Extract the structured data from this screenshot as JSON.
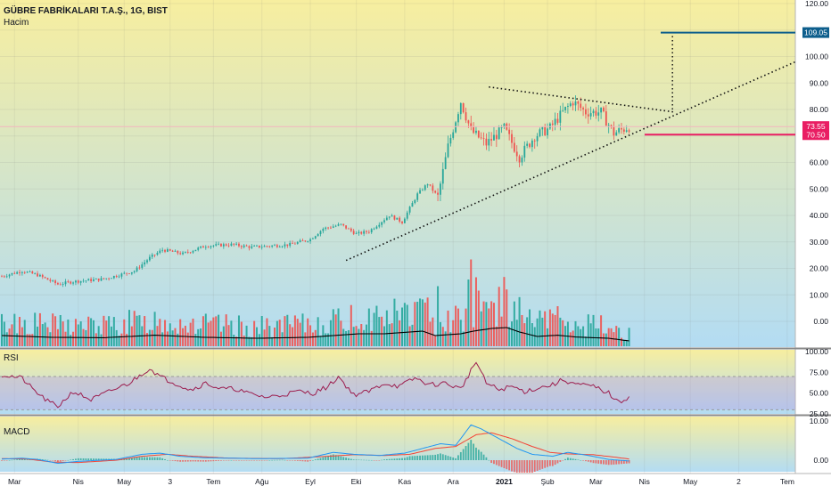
{
  "header": {
    "symbol_title": "GÜBRE FABRİKALARI T.A.Ş., 1G, BIST",
    "volume_label": "Hacim"
  },
  "colors": {
    "up": "#26a69a",
    "down": "#ef5350",
    "volume_ma": "#000000",
    "target_line": "#0d5e8c",
    "support_line": "#e91e63",
    "last_price_line": "#f4b6be",
    "rsi_line": "#9c1d4e",
    "macd_line": "#2196f3",
    "signal_line": "#f44336",
    "grad_top": "#f7ee9f",
    "grad_bottom": "#b3dcf3"
  },
  "chart_data": [
    {
      "type": "candlestick",
      "panel": "price",
      "title": "GÜBRE FABRİKALARI T.A.Ş., 1G, BIST",
      "x_ticks": [
        "Mar",
        "Nis",
        "May",
        "3",
        "Tem",
        "Ağu",
        "Eyl",
        "Eki",
        "Kas",
        "Ara",
        "2021",
        "Şub",
        "Mar",
        "Nis",
        "May",
        "2",
        "Tem"
      ],
      "y_ticks": [
        "120.00",
        "110.00",
        "100.00",
        "90.00",
        "80.00",
        "70.00",
        "60.00",
        "50.00",
        "40.00",
        "30.00",
        "20.00",
        "10.00",
        "0.00"
      ],
      "ylim": [
        -3,
        120
      ],
      "close_path": [
        [
          0,
          17
        ],
        [
          8,
          19
        ],
        [
          14,
          17.5
        ],
        [
          22,
          14
        ],
        [
          28,
          15
        ],
        [
          40,
          16
        ],
        [
          52,
          19
        ],
        [
          58,
          24
        ],
        [
          63,
          27
        ],
        [
          71,
          25.5
        ],
        [
          80,
          28.5
        ],
        [
          90,
          29
        ],
        [
          98,
          28
        ],
        [
          113,
          29
        ],
        [
          121,
          31
        ],
        [
          126,
          35
        ],
        [
          133,
          36.5
        ],
        [
          139,
          33
        ],
        [
          144,
          34
        ],
        [
          152,
          40
        ],
        [
          157,
          37.5
        ],
        [
          163,
          48
        ],
        [
          167,
          52
        ],
        [
          171,
          47
        ],
        [
          175,
          66
        ],
        [
          180,
          83
        ],
        [
          184,
          72
        ],
        [
          190,
          67
        ],
        [
          197,
          73
        ],
        [
          203,
          62
        ],
        [
          209,
          70
        ],
        [
          215,
          73
        ],
        [
          220,
          79
        ],
        [
          224,
          83
        ],
        [
          229,
          79
        ],
        [
          235,
          79
        ],
        [
          240,
          71
        ],
        [
          246,
          73.55
        ]
      ],
      "last_price": "73.55",
      "support_label": "70.50",
      "target_label": "109.05",
      "volume_ma_path": [
        [
          0,
          0.6
        ],
        [
          20,
          0.5
        ],
        [
          40,
          0.48
        ],
        [
          60,
          0.62
        ],
        [
          80,
          0.5
        ],
        [
          100,
          0.45
        ],
        [
          120,
          0.5
        ],
        [
          140,
          0.7
        ],
        [
          150,
          0.7
        ],
        [
          165,
          0.85
        ],
        [
          170,
          0.6
        ],
        [
          180,
          0.7
        ],
        [
          185,
          0.85
        ],
        [
          192,
          1.0
        ],
        [
          198,
          1.05
        ],
        [
          203,
          0.8
        ],
        [
          210,
          0.55
        ],
        [
          218,
          0.62
        ],
        [
          225,
          0.52
        ],
        [
          232,
          0.48
        ],
        [
          238,
          0.45
        ],
        [
          246,
          0.3
        ]
      ],
      "volume_spikes": [
        [
          168,
          0.55
        ],
        [
          171,
          1.35
        ],
        [
          183,
          1.5
        ],
        [
          184,
          1.95
        ],
        [
          186,
          1.55
        ],
        [
          187,
          1.25
        ],
        [
          191,
          0.85
        ],
        [
          204,
          0.7
        ],
        [
          218,
          0.9
        ],
        [
          222,
          0.55
        ],
        [
          226,
          0.45
        ],
        [
          233,
          0.4
        ],
        [
          132,
          0.85
        ],
        [
          141,
          0.5
        ],
        [
          155,
          0.8
        ],
        [
          1,
          0.55
        ],
        [
          55,
          0.45
        ],
        [
          78,
          0.4
        ]
      ]
    },
    {
      "type": "line",
      "panel": "rsi",
      "name": "RSI",
      "y_ticks": [
        "100.00",
        "75.00",
        "50.00",
        "25.00"
      ],
      "ylim": [
        20,
        100
      ],
      "bands": [
        30,
        70
      ],
      "path": [
        [
          0,
          72
        ],
        [
          8,
          68
        ],
        [
          12,
          55
        ],
        [
          18,
          40
        ],
        [
          22,
          34
        ],
        [
          28,
          52
        ],
        [
          35,
          42
        ],
        [
          43,
          53
        ],
        [
          50,
          62
        ],
        [
          58,
          80
        ],
        [
          62,
          70
        ],
        [
          68,
          62
        ],
        [
          74,
          54
        ],
        [
          80,
          62
        ],
        [
          86,
          55
        ],
        [
          92,
          55
        ],
        [
          96,
          50
        ],
        [
          104,
          45
        ],
        [
          110,
          48
        ],
        [
          116,
          52
        ],
        [
          122,
          50
        ],
        [
          128,
          58
        ],
        [
          132,
          70
        ],
        [
          138,
          48
        ],
        [
          144,
          52
        ],
        [
          150,
          62
        ],
        [
          156,
          58
        ],
        [
          162,
          68
        ],
        [
          168,
          60
        ],
        [
          174,
          62
        ],
        [
          180,
          55
        ],
        [
          186,
          88
        ],
        [
          190,
          62
        ],
        [
          195,
          54
        ],
        [
          200,
          58
        ],
        [
          205,
          52
        ],
        [
          210,
          56
        ],
        [
          216,
          60
        ],
        [
          220,
          66
        ],
        [
          226,
          60
        ],
        [
          232,
          58
        ],
        [
          238,
          50
        ],
        [
          242,
          38
        ],
        [
          246,
          46
        ]
      ]
    },
    {
      "type": "line",
      "panel": "macd",
      "name": "MACD",
      "y_ticks": [
        "10.00",
        "0.00"
      ],
      "ylim": [
        -3,
        12
      ],
      "macd_path": [
        [
          0,
          0.3
        ],
        [
          8,
          0.5
        ],
        [
          14,
          0.2
        ],
        [
          22,
          -0.8
        ],
        [
          30,
          -0.3
        ],
        [
          45,
          0.2
        ],
        [
          55,
          1.5
        ],
        [
          62,
          1.8
        ],
        [
          70,
          1.0
        ],
        [
          80,
          0.6
        ],
        [
          100,
          0.4
        ],
        [
          120,
          0.5
        ],
        [
          130,
          2.0
        ],
        [
          138,
          1.5
        ],
        [
          148,
          1.2
        ],
        [
          158,
          1.8
        ],
        [
          165,
          3.0
        ],
        [
          172,
          4.2
        ],
        [
          178,
          3.8
        ],
        [
          184,
          9.0
        ],
        [
          188,
          8.0
        ],
        [
          195,
          5.5
        ],
        [
          202,
          3.0
        ],
        [
          208,
          1.5
        ],
        [
          216,
          1.0
        ],
        [
          222,
          2.0
        ],
        [
          230,
          1.2
        ],
        [
          238,
          0.2
        ],
        [
          246,
          -0.2
        ]
      ],
      "signal_path": [
        [
          0,
          0.4
        ],
        [
          10,
          0.3
        ],
        [
          20,
          -0.5
        ],
        [
          30,
          -0.6
        ],
        [
          45,
          0.0
        ],
        [
          55,
          1.0
        ],
        [
          65,
          1.5
        ],
        [
          75,
          1.0
        ],
        [
          90,
          0.5
        ],
        [
          110,
          0.4
        ],
        [
          128,
          1.0
        ],
        [
          138,
          1.4
        ],
        [
          150,
          1.2
        ],
        [
          160,
          1.5
        ],
        [
          170,
          3.0
        ],
        [
          178,
          3.5
        ],
        [
          186,
          6.5
        ],
        [
          192,
          7.0
        ],
        [
          200,
          5.5
        ],
        [
          208,
          3.5
        ],
        [
          215,
          2.0
        ],
        [
          222,
          1.6
        ],
        [
          232,
          1.4
        ],
        [
          240,
          0.8
        ],
        [
          246,
          0.3
        ]
      ]
    }
  ]
}
